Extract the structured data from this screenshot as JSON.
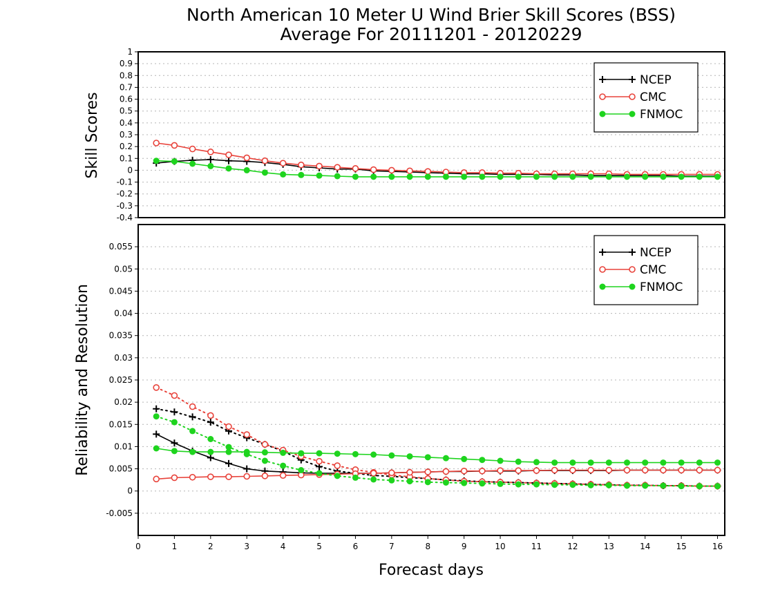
{
  "chart_data": [
    {
      "type": "line",
      "panel": "top",
      "title": "North American 10 Meter U Wind Brier Skill Scores (BSS)",
      "subtitle": "Average For 20111201 - 20120229",
      "ylabel": "Skill Scores",
      "xlabel": "",
      "xlim": [
        0,
        16.2
      ],
      "ylim": [
        -0.4,
        1
      ],
      "yticks": [
        -0.4,
        -0.3,
        -0.2,
        -0.1,
        0,
        0.1,
        0.2,
        0.3,
        0.4,
        0.5,
        0.6,
        0.7,
        0.8,
        0.9,
        1
      ],
      "ytick_labels": [
        "-0.4",
        "-0.3",
        "-0.2",
        "-0.1",
        "0",
        "0.1",
        "0.2",
        "0.3",
        "0.4",
        "0.5",
        "0.6",
        "0.7",
        "0.8",
        "0.9",
        "1"
      ],
      "grid": true,
      "legend_position": "top-right",
      "x": [
        0.5,
        1,
        1.5,
        2,
        2.5,
        3,
        3.5,
        4,
        4.5,
        5,
        5.5,
        6,
        6.5,
        7,
        7.5,
        8,
        8.5,
        9,
        9.5,
        10,
        10.5,
        11,
        11.5,
        12,
        12.5,
        13,
        13.5,
        14,
        14.5,
        15,
        15.5,
        16
      ],
      "series": [
        {
          "name": "NCEP",
          "color": "#000000",
          "marker": "plus",
          "line": "solid",
          "values": [
            0.06,
            0.075,
            0.085,
            0.09,
            0.08,
            0.075,
            0.065,
            0.05,
            0.03,
            0.02,
            0.01,
            0.01,
            -0.005,
            -0.01,
            -0.015,
            -0.02,
            -0.025,
            -0.03,
            -0.03,
            -0.035,
            -0.035,
            -0.035,
            -0.04,
            -0.04,
            -0.045,
            -0.045,
            -0.045,
            -0.045,
            -0.045,
            -0.05,
            -0.05,
            -0.05
          ]
        },
        {
          "name": "CMC",
          "color": "#e8423a",
          "marker": "open-circle",
          "line": "solid",
          "values": [
            0.23,
            0.21,
            0.18,
            0.155,
            0.13,
            0.105,
            0.08,
            0.06,
            0.045,
            0.035,
            0.025,
            0.015,
            0.005,
            0,
            -0.005,
            -0.01,
            -0.015,
            -0.02,
            -0.02,
            -0.025,
            -0.025,
            -0.03,
            -0.03,
            -0.03,
            -0.03,
            -0.03,
            -0.035,
            -0.035,
            -0.035,
            -0.035,
            -0.035,
            -0.035
          ]
        },
        {
          "name": "FNMOC",
          "color": "#1ed41e",
          "marker": "filled-circle",
          "line": "solid",
          "values": [
            0.08,
            0.075,
            0.055,
            0.035,
            0.015,
            0,
            -0.02,
            -0.035,
            -0.04,
            -0.045,
            -0.05,
            -0.055,
            -0.055,
            -0.055,
            -0.055,
            -0.055,
            -0.055,
            -0.055,
            -0.055,
            -0.055,
            -0.055,
            -0.055,
            -0.055,
            -0.055,
            -0.055,
            -0.055,
            -0.055,
            -0.055,
            -0.055,
            -0.055,
            -0.055,
            -0.055
          ]
        }
      ]
    },
    {
      "type": "line",
      "panel": "bottom",
      "title": "",
      "ylabel": "Reliability and Resolution",
      "xlabel": "Forecast days",
      "xlim": [
        0,
        16.2
      ],
      "ylim": [
        -0.01,
        0.06
      ],
      "xticks": [
        0,
        1,
        2,
        3,
        4,
        5,
        6,
        7,
        8,
        9,
        10,
        11,
        12,
        13,
        14,
        15,
        16
      ],
      "xtick_labels": [
        "0",
        "1",
        "2",
        "3",
        "4",
        "5",
        "6",
        "7",
        "8",
        "9",
        "10",
        "11",
        "12",
        "13",
        "14",
        "15",
        "16"
      ],
      "yticks": [
        -0.005,
        0,
        0.005,
        0.01,
        0.015,
        0.02,
        0.025,
        0.03,
        0.035,
        0.04,
        0.045,
        0.05,
        0.055
      ],
      "ytick_labels": [
        "-0.005",
        "0",
        "0.005",
        "0.01",
        "0.015",
        "0.02",
        "0.025",
        "0.03",
        "0.035",
        "0.04",
        "0.045",
        "0.05",
        "0.055"
      ],
      "grid": true,
      "legend_position": "top-right",
      "x": [
        0.5,
        1,
        1.5,
        2,
        2.5,
        3,
        3.5,
        4,
        4.5,
        5,
        5.5,
        6,
        6.5,
        7,
        7.5,
        8,
        8.5,
        9,
        9.5,
        10,
        10.5,
        11,
        11.5,
        12,
        12.5,
        13,
        13.5,
        14,
        14.5,
        15,
        15.5,
        16
      ],
      "series": [
        {
          "name": "NCEP",
          "metric": "reliability",
          "color": "#000000",
          "marker": "plus",
          "line": "dotted",
          "values": [
            0.0185,
            0.0178,
            0.0167,
            0.0155,
            0.0135,
            0.012,
            0.0105,
            0.009,
            0.007,
            0.0055,
            0.0045,
            0.004,
            0.0035,
            0.0033,
            0.003,
            0.0028,
            0.0025,
            0.0023,
            0.0021,
            0.002,
            0.0019,
            0.0018,
            0.0017,
            0.0016,
            0.0015,
            0.0014,
            0.0013,
            0.0013,
            0.0012,
            0.0012,
            0.0011,
            0.0011
          ]
        },
        {
          "name": "NCEP",
          "metric": "resolution",
          "color": "#000000",
          "marker": "plus",
          "line": "solid",
          "values": [
            0.0128,
            0.0108,
            0.009,
            0.0075,
            0.0062,
            0.005,
            0.0045,
            0.0043,
            0.0041,
            0.004,
            0.004,
            0.004,
            0.004,
            0.0041,
            0.0042,
            0.0043,
            0.0044,
            0.0044,
            0.0045,
            0.0045,
            0.0045,
            0.0046,
            0.0046,
            0.0046,
            0.0046,
            0.0046,
            0.0047,
            0.0047,
            0.0047,
            0.0047,
            0.0047,
            0.0047
          ]
        },
        {
          "name": "CMC",
          "metric": "reliability",
          "color": "#e8423a",
          "marker": "open-circle",
          "line": "dotted",
          "values": [
            0.0233,
            0.0215,
            0.019,
            0.017,
            0.0145,
            0.0127,
            0.0105,
            0.0092,
            0.0078,
            0.0067,
            0.0057,
            0.0048,
            0.0042,
            0.0036,
            0.0032,
            0.0028,
            0.0025,
            0.0022,
            0.0021,
            0.002,
            0.0019,
            0.0018,
            0.0017,
            0.0016,
            0.0015,
            0.0014,
            0.0013,
            0.0013,
            0.0012,
            0.0012,
            0.0011,
            0.0011
          ]
        },
        {
          "name": "CMC",
          "metric": "resolution",
          "color": "#e8423a",
          "marker": "open-circle",
          "line": "solid",
          "values": [
            0.0027,
            0.003,
            0.0031,
            0.0032,
            0.0032,
            0.0033,
            0.0034,
            0.0035,
            0.0036,
            0.0037,
            0.0038,
            0.0039,
            0.004,
            0.0041,
            0.0042,
            0.0043,
            0.0044,
            0.0045,
            0.0045,
            0.0046,
            0.0046,
            0.0046,
            0.0047,
            0.0047,
            0.0047,
            0.0047,
            0.0047,
            0.0047,
            0.0047,
            0.0047,
            0.0047,
            0.0047
          ]
        },
        {
          "name": "FNMOC",
          "metric": "reliability",
          "color": "#1ed41e",
          "marker": "filled-circle",
          "line": "dotted",
          "values": [
            0.0168,
            0.0155,
            0.0135,
            0.0117,
            0.0099,
            0.0083,
            0.0068,
            0.0057,
            0.0047,
            0.004,
            0.0034,
            0.003,
            0.0026,
            0.0024,
            0.0022,
            0.002,
            0.0019,
            0.0018,
            0.0017,
            0.0016,
            0.0015,
            0.0015,
            0.0014,
            0.0014,
            0.0013,
            0.0013,
            0.0012,
            0.0012,
            0.0012,
            0.0011,
            0.0011,
            0.0011
          ]
        },
        {
          "name": "FNMOC",
          "metric": "resolution",
          "color": "#1ed41e",
          "marker": "filled-circle",
          "line": "solid",
          "values": [
            0.0096,
            0.009,
            0.0088,
            0.0088,
            0.0088,
            0.0088,
            0.0087,
            0.0086,
            0.0085,
            0.0085,
            0.0084,
            0.0083,
            0.0082,
            0.008,
            0.0078,
            0.0076,
            0.0074,
            0.0072,
            0.007,
            0.0068,
            0.0066,
            0.0065,
            0.0064,
            0.0064,
            0.0064,
            0.0064,
            0.0064,
            0.0064,
            0.0064,
            0.0064,
            0.0064,
            0.0064
          ]
        }
      ]
    }
  ],
  "legend": {
    "entries": [
      {
        "label": "NCEP",
        "color": "#000000",
        "marker": "plus"
      },
      {
        "label": "CMC",
        "color": "#e8423a",
        "marker": "open-circle"
      },
      {
        "label": "FNMOC",
        "color": "#1ed41e",
        "marker": "filled-circle"
      }
    ]
  }
}
